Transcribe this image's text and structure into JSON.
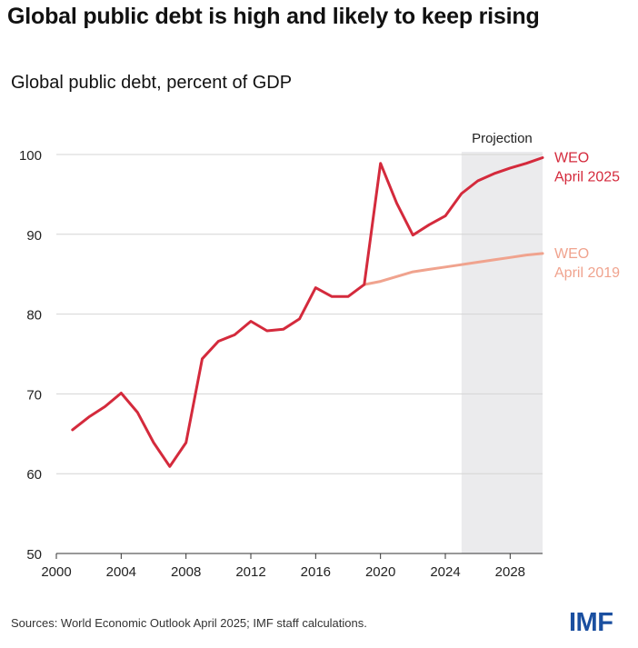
{
  "header": {
    "title": "Global public debt is high and likely to keep rising",
    "subtitle": "Global public debt, percent of GDP"
  },
  "footer": {
    "source": "Sources: World Economic Outlook April 2025; IMF staff calculations.",
    "logo_text": "IMF"
  },
  "chart_data": {
    "type": "line",
    "title": "Global public debt is high and likely to keep rising",
    "subtitle": "Global public debt, percent of GDP",
    "xlabel": "",
    "ylabel": "",
    "xlim": [
      2000,
      2030
    ],
    "ylim": [
      50,
      100
    ],
    "x_ticks": [
      2000,
      2004,
      2008,
      2012,
      2016,
      2020,
      2024,
      2028
    ],
    "y_ticks": [
      50,
      60,
      70,
      80,
      90,
      100
    ],
    "grid": "horizontal",
    "projection": {
      "label": "Projection",
      "start": 2025,
      "end": 2030,
      "color": "#ebebed"
    },
    "series": [
      {
        "name": "WEO April 2025",
        "label_lines": [
          "WEO",
          "April 2025"
        ],
        "color": "#d42a3c",
        "x": [
          2001,
          2002,
          2003,
          2004,
          2005,
          2006,
          2007,
          2008,
          2009,
          2010,
          2011,
          2012,
          2013,
          2014,
          2015,
          2016,
          2017,
          2018,
          2019,
          2020,
          2021,
          2022,
          2023,
          2024,
          2025,
          2026,
          2027,
          2028,
          2029,
          2030
        ],
        "values": [
          65.5,
          67.1,
          68.4,
          70.1,
          67.7,
          63.9,
          60.9,
          63.9,
          74.4,
          76.6,
          77.4,
          79.1,
          77.9,
          78.1,
          79.4,
          83.3,
          82.2,
          82.2,
          83.7,
          98.9,
          93.9,
          89.9,
          91.2,
          92.3,
          95.1,
          96.7,
          97.6,
          98.3,
          98.9,
          99.6
        ]
      },
      {
        "name": "WEO April 2019",
        "label_lines": [
          "WEO",
          "April 2019"
        ],
        "color": "#f0a38e",
        "x": [
          2019,
          2020,
          2021,
          2022,
          2023,
          2024,
          2025,
          2026,
          2027,
          2028,
          2029,
          2030
        ],
        "values": [
          83.7,
          84.1,
          84.7,
          85.3,
          85.6,
          85.9,
          86.2,
          86.5,
          86.8,
          87.1,
          87.4,
          87.6
        ]
      }
    ]
  }
}
